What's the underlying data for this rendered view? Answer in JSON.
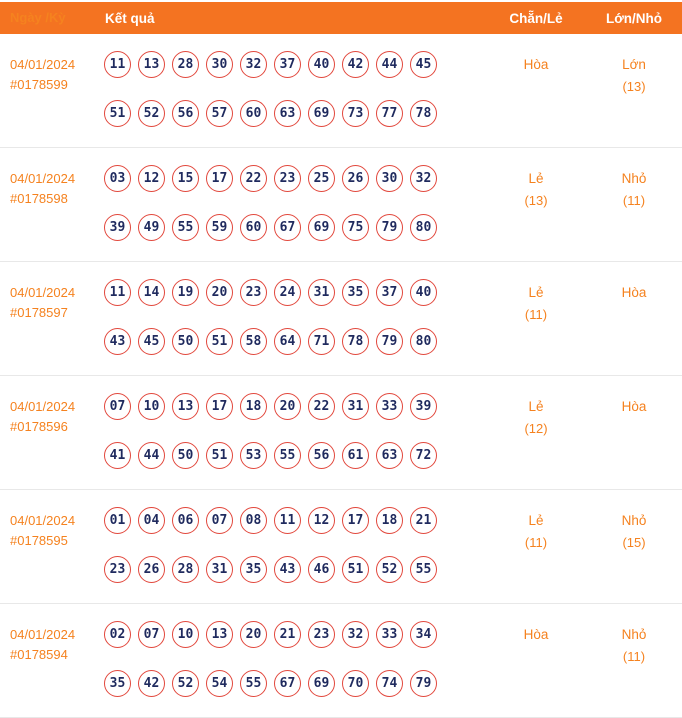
{
  "header": {
    "date_label": "Ngày /Kỳ",
    "result_label": "Kết quả",
    "even_odd_label": "Chẵn/Lẻ",
    "big_small_label": "Lớn/Nhỏ"
  },
  "rows": [
    {
      "date": "04/01/2024",
      "id": "#0178599",
      "numbers_line1": [
        "11",
        "13",
        "28",
        "30",
        "32",
        "37",
        "40",
        "42",
        "44",
        "45"
      ],
      "numbers_line2": [
        "51",
        "52",
        "56",
        "57",
        "60",
        "63",
        "69",
        "73",
        "77",
        "78"
      ],
      "even_odd": "Hòa",
      "even_odd_count": "",
      "big_small": "Lớn",
      "big_small_count": "(13)"
    },
    {
      "date": "04/01/2024",
      "id": "#0178598",
      "numbers_line1": [
        "03",
        "12",
        "15",
        "17",
        "22",
        "23",
        "25",
        "26",
        "30",
        "32"
      ],
      "numbers_line2": [
        "39",
        "49",
        "55",
        "59",
        "60",
        "67",
        "69",
        "75",
        "79",
        "80"
      ],
      "even_odd": "Lẻ",
      "even_odd_count": "(13)",
      "big_small": "Nhỏ",
      "big_small_count": "(11)"
    },
    {
      "date": "04/01/2024",
      "id": "#0178597",
      "numbers_line1": [
        "11",
        "14",
        "19",
        "20",
        "23",
        "24",
        "31",
        "35",
        "37",
        "40"
      ],
      "numbers_line2": [
        "43",
        "45",
        "50",
        "51",
        "58",
        "64",
        "71",
        "78",
        "79",
        "80"
      ],
      "even_odd": "Lẻ",
      "even_odd_count": "(11)",
      "big_small": "Hòa",
      "big_small_count": ""
    },
    {
      "date": "04/01/2024",
      "id": "#0178596",
      "numbers_line1": [
        "07",
        "10",
        "13",
        "17",
        "18",
        "20",
        "22",
        "31",
        "33",
        "39"
      ],
      "numbers_line2": [
        "41",
        "44",
        "50",
        "51",
        "53",
        "55",
        "56",
        "61",
        "63",
        "72"
      ],
      "even_odd": "Lẻ",
      "even_odd_count": "(12)",
      "big_small": "Hòa",
      "big_small_count": ""
    },
    {
      "date": "04/01/2024",
      "id": "#0178595",
      "numbers_line1": [
        "01",
        "04",
        "06",
        "07",
        "08",
        "11",
        "12",
        "17",
        "18",
        "21"
      ],
      "numbers_line2": [
        "23",
        "26",
        "28",
        "31",
        "35",
        "43",
        "46",
        "51",
        "52",
        "55"
      ],
      "even_odd": "Lẻ",
      "even_odd_count": "(11)",
      "big_small": "Nhỏ",
      "big_small_count": "(15)"
    },
    {
      "date": "04/01/2024",
      "id": "#0178594",
      "numbers_line1": [
        "02",
        "07",
        "10",
        "13",
        "20",
        "21",
        "23",
        "32",
        "33",
        "34"
      ],
      "numbers_line2": [
        "35",
        "42",
        "52",
        "54",
        "55",
        "67",
        "69",
        "70",
        "74",
        "79"
      ],
      "even_odd": "Hòa",
      "even_odd_count": "",
      "big_small": "Nhỏ",
      "big_small_count": "(11)"
    }
  ],
  "colors": {
    "header_bg": "#f47321",
    "accent_text": "#f5821f",
    "ball_border": "#e2483d",
    "ball_text": "#1f2a5e",
    "row_divider": "#e8e8e8"
  }
}
